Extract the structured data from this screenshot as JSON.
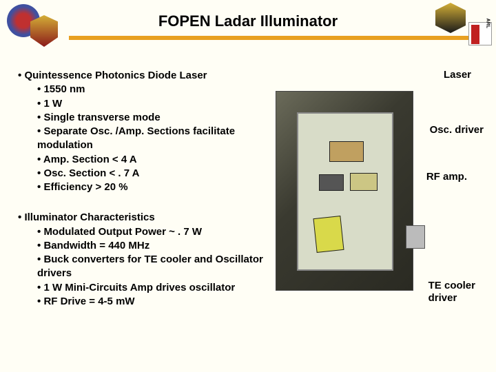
{
  "title": "FOPEN Ladar Illuminator",
  "section1": {
    "heading": "Quintessence Photonics Diode Laser",
    "items": [
      "1550 nm",
      "1 W",
      "Single transverse mode",
      "Separate Osc. /Amp. Sections facilitate modulation",
      "Amp. Section < 4 A",
      "Osc. Section < . 7 A",
      "Efficiency > 20 %"
    ]
  },
  "section2": {
    "heading": "Illuminator Characteristics",
    "items": [
      "Modulated Output Power  ~ . 7 W",
      "Bandwidth = 440 MHz",
      "Buck converters for TE cooler and Oscillator drivers",
      "1 W Mini-Circuits Amp drives oscillator",
      "RF Drive = 4-5 mW"
    ]
  },
  "annotations": {
    "laser": "Laser",
    "osc": "Osc. driver",
    "rf": "RF amp.",
    "te1": "TE cooler",
    "te2": "driver"
  },
  "bullet": "•"
}
